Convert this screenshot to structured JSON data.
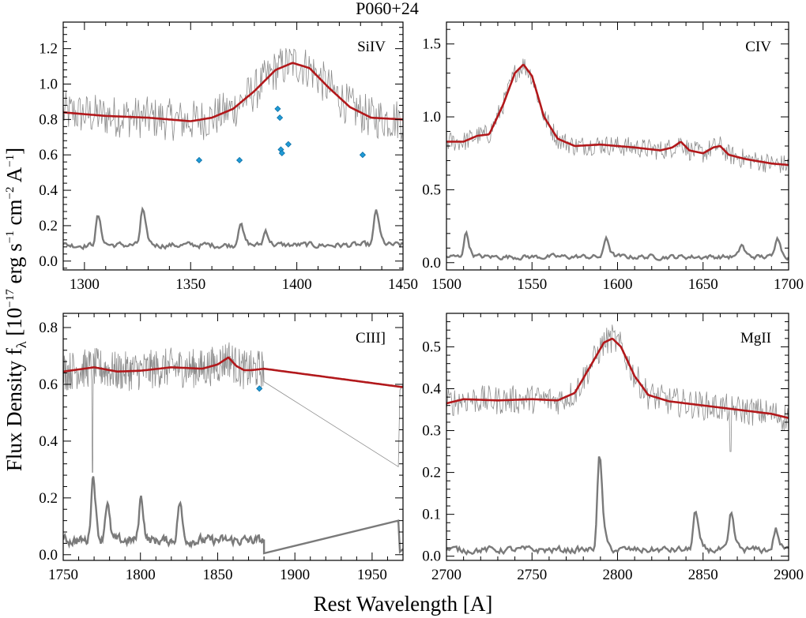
{
  "figure": {
    "title": "P060+24",
    "xlabel": "Rest Wavelength [A]",
    "ylabel_main": "Flux Density f",
    "ylabel_sub": "λ",
    "ylabel_tail": " [10",
    "ylabel_exp1": "−17",
    "ylabel_unit1": " erg s",
    "ylabel_exp2": "−1",
    "ylabel_unit2": " cm",
    "ylabel_exp3": "−2",
    "ylabel_unit3": " A",
    "ylabel_exp4": "−1",
    "ylabel_close": "]"
  },
  "colors": {
    "spectrum": "#8c8c8c",
    "model": "#b2181b",
    "error": "#7a7a7a",
    "absorber": "#1f9bd6",
    "frame": "#000000"
  },
  "chart_data": [
    {
      "type": "line",
      "label": "SiIV",
      "xlim": [
        1290,
        1450
      ],
      "ylim": [
        -0.05,
        1.35
      ],
      "xticks": [
        1300,
        1350,
        1400,
        1450
      ],
      "yticks": [
        0.0,
        0.2,
        0.4,
        0.6,
        0.8,
        1.0,
        1.2
      ],
      "ytick_labels": [
        "0.0",
        "0.2",
        "0.4",
        "0.6",
        "0.8",
        "1.0",
        "1.2"
      ],
      "model": {
        "x": [
          1290,
          1310,
          1330,
          1350,
          1360,
          1370,
          1380,
          1390,
          1398,
          1406,
          1415,
          1425,
          1435,
          1450
        ],
        "y": [
          0.84,
          0.82,
          0.81,
          0.79,
          0.81,
          0.86,
          0.96,
          1.08,
          1.12,
          1.09,
          0.98,
          0.87,
          0.81,
          0.8
        ]
      },
      "spectrum_base": {
        "x": [
          1290,
          1310,
          1330,
          1350,
          1360,
          1370,
          1380,
          1390,
          1398,
          1406,
          1415,
          1425,
          1435,
          1450
        ],
        "y": [
          0.84,
          0.82,
          0.81,
          0.79,
          0.81,
          0.86,
          0.96,
          1.08,
          1.12,
          1.09,
          0.98,
          0.87,
          0.81,
          0.8
        ]
      },
      "spectrum_noise": 0.12,
      "error_level": 0.09,
      "error_noise": 0.03,
      "error_bumps": [
        {
          "x": 1306,
          "y": 0.19
        },
        {
          "x": 1327,
          "y": 0.21
        },
        {
          "x": 1373,
          "y": 0.17
        },
        {
          "x": 1385,
          "y": 0.14
        },
        {
          "x": 1437,
          "y": 0.21
        }
      ],
      "absorbers": {
        "x": [
          1354,
          1373,
          1391,
          1392,
          1392.5,
          1393,
          1396,
          1431
        ],
        "y": [
          0.57,
          0.57,
          0.86,
          0.81,
          0.63,
          0.61,
          0.66,
          0.6
        ]
      }
    },
    {
      "type": "line",
      "label": "CIV",
      "xlim": [
        1500,
        1700
      ],
      "ylim": [
        -0.05,
        1.65
      ],
      "xticks": [
        1500,
        1550,
        1600,
        1650,
        1700
      ],
      "yticks": [
        0.0,
        0.5,
        1.0,
        1.5
      ],
      "ytick_labels": [
        "0.0",
        "0.5",
        "1.0",
        "1.5"
      ],
      "model": {
        "x": [
          1500,
          1510,
          1518,
          1525,
          1533,
          1540,
          1545,
          1550,
          1557,
          1565,
          1575,
          1590,
          1610,
          1625,
          1632,
          1637,
          1642,
          1650,
          1656,
          1660,
          1665,
          1675,
          1690,
          1700
        ],
        "y": [
          0.83,
          0.83,
          0.87,
          0.88,
          1.08,
          1.3,
          1.36,
          1.28,
          1.0,
          0.85,
          0.8,
          0.81,
          0.79,
          0.77,
          0.79,
          0.83,
          0.77,
          0.75,
          0.79,
          0.8,
          0.74,
          0.71,
          0.68,
          0.67
        ]
      },
      "spectrum_base": {
        "x": [
          1500,
          1510,
          1518,
          1525,
          1533,
          1540,
          1545,
          1550,
          1557,
          1565,
          1575,
          1590,
          1610,
          1625,
          1632,
          1637,
          1642,
          1650,
          1656,
          1660,
          1665,
          1675,
          1690,
          1700
        ],
        "y": [
          0.83,
          0.83,
          0.87,
          0.88,
          1.08,
          1.3,
          1.36,
          1.28,
          1.0,
          0.85,
          0.8,
          0.81,
          0.79,
          0.77,
          0.79,
          0.83,
          0.77,
          0.75,
          0.79,
          0.8,
          0.74,
          0.71,
          0.68,
          0.67
        ]
      },
      "spectrum_noise": 0.07,
      "error_level": 0.04,
      "error_noise": 0.03,
      "error_bumps": [
        {
          "x": 1511,
          "y": 0.14
        },
        {
          "x": 1593,
          "y": 0.12
        },
        {
          "x": 1672,
          "y": 0.09
        },
        {
          "x": 1693,
          "y": 0.13
        }
      ],
      "absorbers": {
        "x": [],
        "y": []
      }
    },
    {
      "type": "line",
      "label": "CIII]",
      "xlim": [
        1750,
        1970
      ],
      "ylim": [
        -0.02,
        0.85
      ],
      "xticks": [
        1750,
        1800,
        1850,
        1900,
        1950
      ],
      "yticks": [
        0.0,
        0.2,
        0.4,
        0.6,
        0.8
      ],
      "ytick_labels": [
        "0.0",
        "0.2",
        "0.4",
        "0.6",
        "0.8"
      ],
      "model": {
        "x": [
          1750,
          1770,
          1785,
          1800,
          1820,
          1840,
          1850,
          1857,
          1862,
          1867,
          1872,
          1880,
          1970
        ],
        "y": [
          0.645,
          0.66,
          0.645,
          0.648,
          0.66,
          0.655,
          0.67,
          0.695,
          0.665,
          0.65,
          0.65,
          0.655,
          0.59
        ]
      },
      "spectrum_base": {
        "x": [
          1750,
          1770,
          1785,
          1800,
          1820,
          1840,
          1850,
          1857,
          1862,
          1867,
          1872,
          1880
        ],
        "y": [
          0.645,
          0.66,
          0.645,
          0.648,
          0.66,
          0.655,
          0.67,
          0.695,
          0.665,
          0.65,
          0.65,
          0.655
        ]
      },
      "spectrum_noise": 0.07,
      "spectrum_gap": {
        "x": [
          1880,
          1967,
          1968,
          1970
        ],
        "y": [
          0.655,
          0.31,
          0.58,
          0.6
        ]
      },
      "spectrum_dip": {
        "x": 1769,
        "y": 0.29
      },
      "error_level": 0.05,
      "error_noise": 0.03,
      "error_end": 1880,
      "error_bumps": [
        {
          "x": 1769,
          "y": 0.17
        },
        {
          "x": 1778,
          "y": 0.12
        },
        {
          "x": 1800,
          "y": 0.13
        },
        {
          "x": 1825,
          "y": 0.12
        }
      ],
      "error_gap": {
        "x": [
          1880,
          1967,
          1968,
          1970
        ],
        "y": [
          0.005,
          0.12,
          0.01,
          0.02
        ]
      },
      "absorbers": {
        "x": [
          1877
        ],
        "y": [
          0.585
        ]
      }
    },
    {
      "type": "line",
      "label": "MgII",
      "xlim": [
        2700,
        2900
      ],
      "ylim": [
        -0.01,
        0.58
      ],
      "xticks": [
        2700,
        2750,
        2800,
        2850,
        2900
      ],
      "yticks": [
        0.0,
        0.1,
        0.2,
        0.3,
        0.4,
        0.5
      ],
      "ytick_labels": [
        "0.0",
        "0.1",
        "0.2",
        "0.3",
        "0.4",
        "0.5"
      ],
      "model": {
        "x": [
          2700,
          2710,
          2730,
          2750,
          2765,
          2775,
          2785,
          2792,
          2797,
          2802,
          2810,
          2818,
          2830,
          2850,
          2870,
          2890,
          2900
        ],
        "y": [
          0.365,
          0.375,
          0.372,
          0.375,
          0.372,
          0.39,
          0.46,
          0.51,
          0.52,
          0.5,
          0.43,
          0.385,
          0.37,
          0.36,
          0.35,
          0.34,
          0.33
        ]
      },
      "spectrum_base": {
        "x": [
          2700,
          2710,
          2730,
          2750,
          2765,
          2775,
          2785,
          2792,
          2797,
          2802,
          2810,
          2818,
          2830,
          2850,
          2870,
          2890,
          2900
        ],
        "y": [
          0.365,
          0.375,
          0.372,
          0.375,
          0.372,
          0.39,
          0.46,
          0.51,
          0.52,
          0.5,
          0.43,
          0.385,
          0.37,
          0.36,
          0.35,
          0.34,
          0.33
        ]
      },
      "spectrum_noise": 0.035,
      "spectrum_dip": {
        "x": 2866,
        "y": 0.25
      },
      "error_level": 0.015,
      "error_noise": 0.015,
      "error_bumps": [
        {
          "x": 2789,
          "y": 0.15
        },
        {
          "x": 2845,
          "y": 0.07
        },
        {
          "x": 2866,
          "y": 0.065
        },
        {
          "x": 2892,
          "y": 0.045
        }
      ],
      "absorbers": {
        "x": [],
        "y": []
      }
    }
  ]
}
